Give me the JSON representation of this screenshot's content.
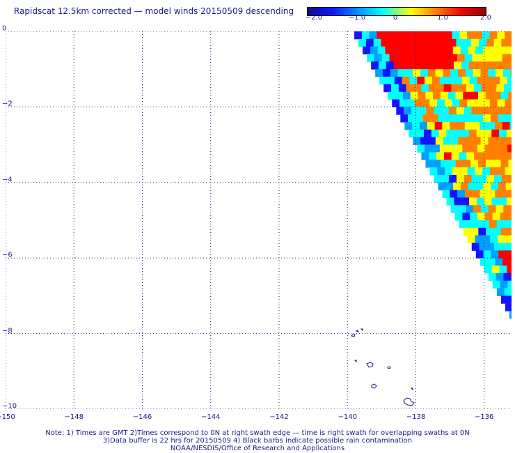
{
  "title": "Rapidscat 12.5km corrected — model winds 20150509 descending",
  "colorbar": {
    "labels": [
      "−2.0",
      "−1.0",
      "0",
      "1.0",
      "2.0"
    ],
    "values": [
      -2.0,
      -1.0,
      0,
      1.0,
      2.0
    ],
    "colors": [
      "#0a0a96",
      "#1414ff",
      "#00a0ff",
      "#00ffff",
      "#ffff00",
      "#ff8000",
      "#ff0000",
      "#960000"
    ]
  },
  "axes": {
    "x_ticks": [
      "−150",
      "−148",
      "−146",
      "−144",
      "−142",
      "−140",
      "−138",
      "−136"
    ],
    "x_values": [
      -150,
      -148,
      -146,
      -144,
      -142,
      -140,
      -138,
      -136
    ],
    "y_ticks": [
      "0",
      "−2",
      "−4",
      "−6",
      "−8",
      "−10"
    ],
    "y_values": [
      0,
      -2,
      -4,
      -6,
      -8,
      -10
    ],
    "xlim": [
      -150,
      -135.2
    ],
    "ylim": [
      -10,
      0
    ],
    "grid": true
  },
  "notes": {
    "line1": "Note: 1) Times are GMT 2)Times correspond to 0N at right swath edge — time is right swath for overlapping swaths at 0N",
    "line2": "3)Data buffer is 22 hrs for 20150509 4) Black barbs indicate possible rain contamination",
    "line3": "NOAA/NESDIS/Office of Research and Applications"
  },
  "swath": {
    "description": "wind difference field, cells east of diagonal swath edge",
    "edge_start": [
      -139.8,
      0
    ],
    "edge_end": [
      -135.2,
      -7.5
    ],
    "cell_lon": 0.22,
    "cell_lat": 0.2
  }
}
